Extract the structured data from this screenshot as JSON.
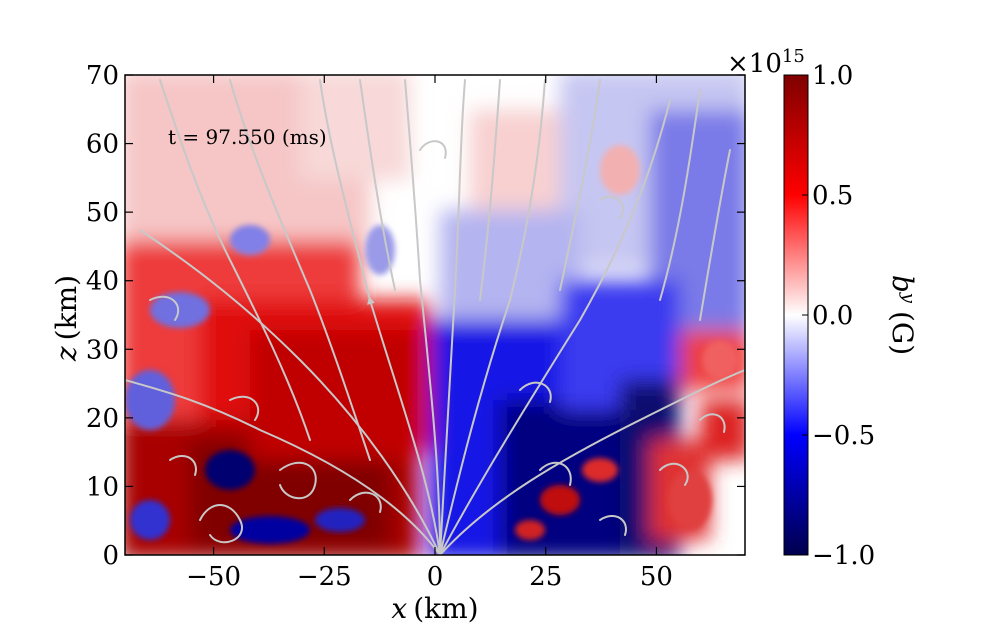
{
  "chart_data": {
    "type": "heatmap",
    "annotation": "t = 97.550 (ms)",
    "xlabel_var": "x",
    "xlabel_unit": "(km)",
    "ylabel_var": "z",
    "ylabel_unit": "(km)",
    "xlim": [
      -70,
      70
    ],
    "ylim": [
      0,
      70
    ],
    "xticks": [
      -50,
      -25,
      0,
      25,
      50
    ],
    "xtick_labels": [
      "−50",
      "−25",
      "0",
      "25",
      "50"
    ],
    "yticks": [
      0,
      10,
      20,
      30,
      40,
      50,
      60,
      70
    ],
    "ytick_labels": [
      "0",
      "10",
      "20",
      "30",
      "40",
      "50",
      "60",
      "70"
    ],
    "colorbar": {
      "label_var": "b",
      "label_sup": "y",
      "label_unit": "(G)",
      "range": [
        -1.0,
        1.0
      ],
      "ticks": [
        1.0,
        0.5,
        0.0,
        -0.5,
        -1.0
      ],
      "tick_labels": [
        "1.0",
        "0.5",
        "0.0",
        "−0.5",
        "−1.0"
      ],
      "multiplier_base": "×10",
      "multiplier_exp": "15",
      "colormap": "seismic"
    },
    "streamlines": {
      "color": "#cccccc",
      "shown": true
    },
    "grid": false
  }
}
